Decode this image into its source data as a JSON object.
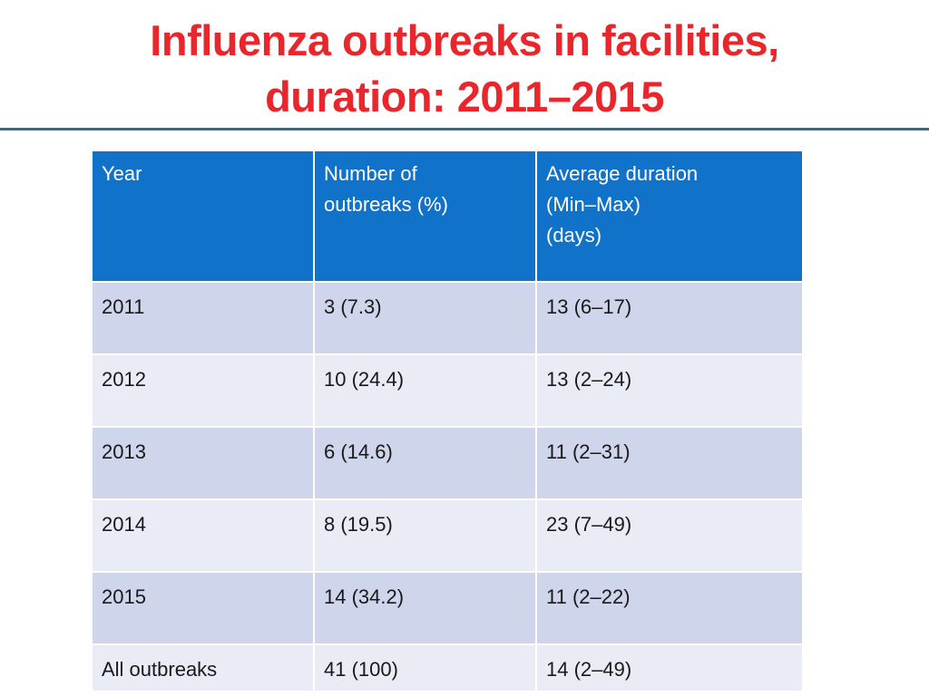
{
  "title": {
    "line1": "Influenza outbreaks in facilities,",
    "line2": "duration: 2011–2015"
  },
  "table": {
    "headers": {
      "year": "Year",
      "outbreaks_line1": "Number of",
      "outbreaks_line2": "outbreaks (%)",
      "duration_line1": "Average duration",
      "duration_line2": "(Min–Max)",
      "duration_line3": "(days)"
    },
    "rows": [
      {
        "year": "2011",
        "outbreaks": "3 (7.3)",
        "duration": "13 (6–17)"
      },
      {
        "year": "2012",
        "outbreaks": "10 (24.4)",
        "duration": "13 (2–24)"
      },
      {
        "year": "2013",
        "outbreaks": "6 (14.6)",
        "duration": "11 (2–31)"
      },
      {
        "year": "2014",
        "outbreaks": "8 (19.5)",
        "duration": "23 (7–49)"
      },
      {
        "year": "2015",
        "outbreaks": "14 (34.2)",
        "duration": "11 (2–22)"
      },
      {
        "year": "All outbreaks",
        "outbreaks": "41 (100)",
        "duration": "14 (2–49)"
      }
    ]
  },
  "colors": {
    "title": "#e8262b",
    "header_bg": "#1172c9",
    "row_dark": "#cfd5ea",
    "row_light": "#e9ebf5",
    "rule": "#2f6f8c"
  }
}
